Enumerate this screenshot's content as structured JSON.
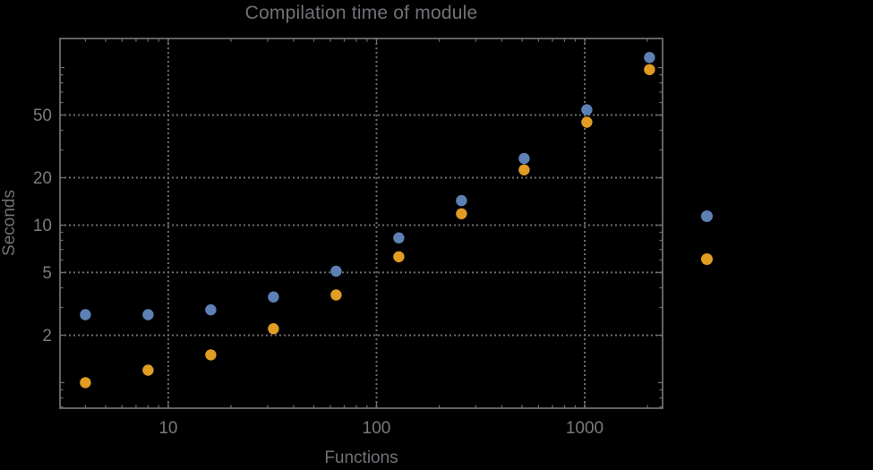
{
  "styles": {
    "background": "#000000",
    "frame_color": "#6d6d6d",
    "grid_color": "#6d6d6d",
    "tick_label_color": "#7a7a7a",
    "text_color": "#6f7276",
    "series1_color": "#5e81b5",
    "series2_color": "#e19c24"
  },
  "chart_data": {
    "type": "scatter",
    "title": "Compilation time of module",
    "xlabel": "Functions",
    "ylabel": "Seconds",
    "xscale": "log",
    "yscale": "log",
    "xlim": [
      3.02,
      2366
    ],
    "ylim": [
      0.688,
      153
    ],
    "grid": "dotted gridlines at labeled major ticks, framed plot, black background",
    "x": [
      4,
      8,
      16,
      32,
      64,
      128,
      256,
      512,
      1024,
      2048
    ],
    "series": [
      {
        "name": "blue",
        "color": "#5e81b5",
        "values": [
          2.7,
          2.7,
          2.9,
          3.5,
          5.1,
          8.3,
          14.3,
          26.5,
          54,
          116
        ]
      },
      {
        "name": "orange",
        "color": "#e19c24",
        "values": [
          1.0,
          1.2,
          1.5,
          2.2,
          3.6,
          6.3,
          11.8,
          22.4,
          45,
          97
        ]
      }
    ],
    "x_ticks": {
      "values": [
        10,
        100,
        1000
      ],
      "labels": [
        "10",
        "100",
        "1000"
      ]
    },
    "y_ticks": {
      "values": [
        2,
        5,
        10,
        20,
        50
      ],
      "labels": [
        "2",
        "5",
        "10",
        "20",
        "50"
      ]
    },
    "legend": {
      "position": "outside-right",
      "markers": [
        {
          "name": "blue-series-marker",
          "color": "#5e81b5",
          "label": ""
        },
        {
          "name": "orange-series-marker",
          "color": "#e19c24",
          "label": ""
        }
      ]
    }
  }
}
